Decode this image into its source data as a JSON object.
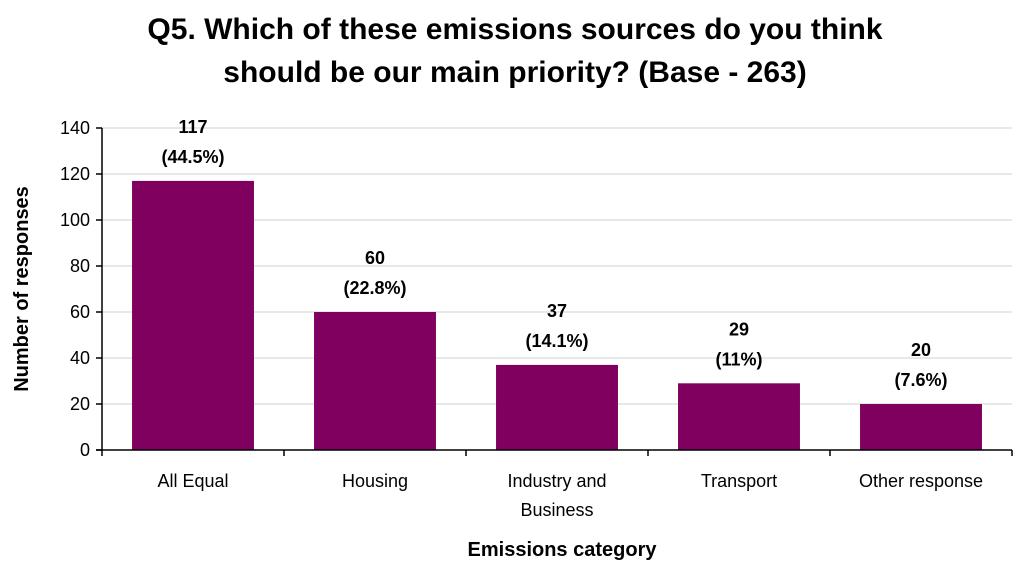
{
  "chart_data": {
    "type": "bar",
    "title_lines": [
      "Q5. Which of these emissions sources do you think",
      "should be our main priority? (Base - 263)"
    ],
    "xlabel": "Emissions category",
    "ylabel": "Number of responses",
    "categories": [
      [
        "All Equal"
      ],
      [
        "Housing"
      ],
      [
        "Industry and",
        "Business"
      ],
      [
        "Transport"
      ],
      [
        "Other response"
      ]
    ],
    "values": [
      117,
      60,
      37,
      29,
      20
    ],
    "data_labels": [
      [
        "117",
        "(44.5%)"
      ],
      [
        "60",
        "(22.8%)"
      ],
      [
        "37",
        "(14.1%)"
      ],
      [
        "29",
        "(11%)"
      ],
      [
        "20",
        "(7.6%)"
      ]
    ],
    "ylim": [
      0,
      140
    ],
    "yticks": [
      0,
      20,
      40,
      60,
      80,
      100,
      120,
      140
    ],
    "grid": true,
    "legend": "none",
    "bar_color": "#800060",
    "grid_color": "#d0d0d0",
    "axis_color": "#000000"
  }
}
